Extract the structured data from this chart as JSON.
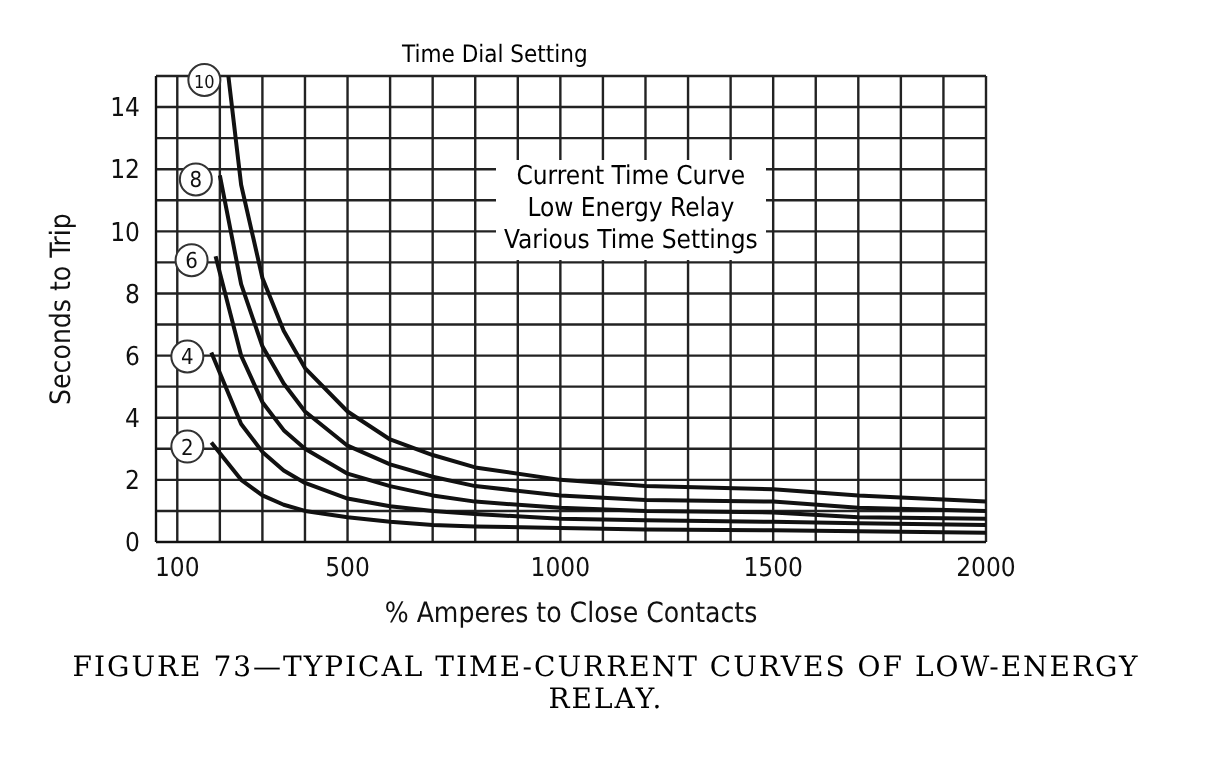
{
  "chart_data": {
    "type": "line",
    "xlabel": "% Amperes to Close Contacts",
    "ylabel": "Seconds to Trip",
    "xlim": [
      50,
      2000
    ],
    "xticks": [
      100,
      {
        "value": 200,
        "label": null
      },
      {
        "value": 300,
        "label": null
      },
      {
        "value": 400,
        "label": null
      },
      500,
      {
        "value": 600,
        "label": null
      },
      {
        "value": 700,
        "label": null
      },
      {
        "value": 800,
        "label": null
      },
      {
        "value": 900,
        "label": null
      },
      1000,
      {
        "value": 1100,
        "label": null
      },
      {
        "value": 1200,
        "label": null
      },
      {
        "value": 1300,
        "label": null
      },
      {
        "value": 1400,
        "label": null
      },
      1500,
      {
        "value": 1600,
        "label": null
      },
      {
        "value": 1700,
        "label": null
      },
      {
        "value": 1800,
        "label": null
      },
      {
        "value": 1900,
        "label": null
      },
      2000
    ],
    "ylim": [
      0,
      15
    ],
    "yticks": [
      0,
      {
        "value": 1,
        "label": null
      },
      2,
      {
        "value": 3,
        "label": null
      },
      4,
      {
        "value": 5,
        "label": null
      },
      6,
      {
        "value": 7,
        "label": null
      },
      8,
      {
        "value": 9,
        "label": null
      },
      10,
      {
        "value": 11,
        "label": null
      },
      12,
      {
        "value": 13,
        "label": null
      },
      14
    ],
    "grid": true,
    "marker": "none",
    "line_style": "solid",
    "series": [
      {
        "name": "10",
        "color": "#111111",
        "x": [
          220,
          250,
          300,
          350,
          400,
          500,
          600,
          700,
          800,
          1000,
          1200,
          1500,
          1700,
          2000
        ],
        "values": [
          15,
          11.5,
          8.5,
          6.8,
          5.6,
          4.2,
          3.3,
          2.8,
          2.4,
          2,
          1.8,
          1.7,
          1.5,
          1.3
        ]
      },
      {
        "name": "8",
        "color": "#111111",
        "x": [
          200,
          250,
          300,
          350,
          400,
          500,
          600,
          700,
          800,
          1000,
          1200,
          1500,
          1700,
          2000
        ],
        "values": [
          11.8,
          8.3,
          6.3,
          5.1,
          4.2,
          3.1,
          2.5,
          2.1,
          1.8,
          1.5,
          1.35,
          1.3,
          1.1,
          1
        ]
      },
      {
        "name": "6",
        "color": "#111111",
        "x": [
          190,
          250,
          300,
          350,
          400,
          500,
          600,
          700,
          800,
          1000,
          1200,
          1500,
          1700,
          2000
        ],
        "values": [
          9.2,
          6,
          4.5,
          3.6,
          3,
          2.2,
          1.8,
          1.5,
          1.3,
          1.1,
          1,
          0.95,
          0.8,
          0.75
        ]
      },
      {
        "name": "4",
        "color": "#111111",
        "x": [
          180,
          250,
          300,
          350,
          400,
          500,
          600,
          700,
          800,
          1000,
          1200,
          1500,
          1700,
          2000
        ],
        "values": [
          6.1,
          3.8,
          2.9,
          2.3,
          1.9,
          1.4,
          1.15,
          1,
          0.9,
          0.75,
          0.7,
          0.65,
          0.6,
          0.55
        ]
      },
      {
        "name": "2",
        "color": "#111111",
        "x": [
          180,
          250,
          300,
          350,
          400,
          500,
          600,
          700,
          800,
          1000,
          1200,
          1500,
          1700,
          2000
        ],
        "values": [
          3.2,
          2,
          1.5,
          1.2,
          1,
          0.8,
          0.65,
          0.55,
          0.5,
          0.45,
          0.4,
          0.38,
          0.35,
          0.3
        ]
      }
    ],
    "annotations": [
      "Time Dial Setting",
      "Current Time Curve\nLow Energy Relay\nVarious Time Settings",
      "FIGURE 73—TYPICAL TIME-CURRENT CURVES OF LOW-ENERGY RELAY."
    ]
  }
}
